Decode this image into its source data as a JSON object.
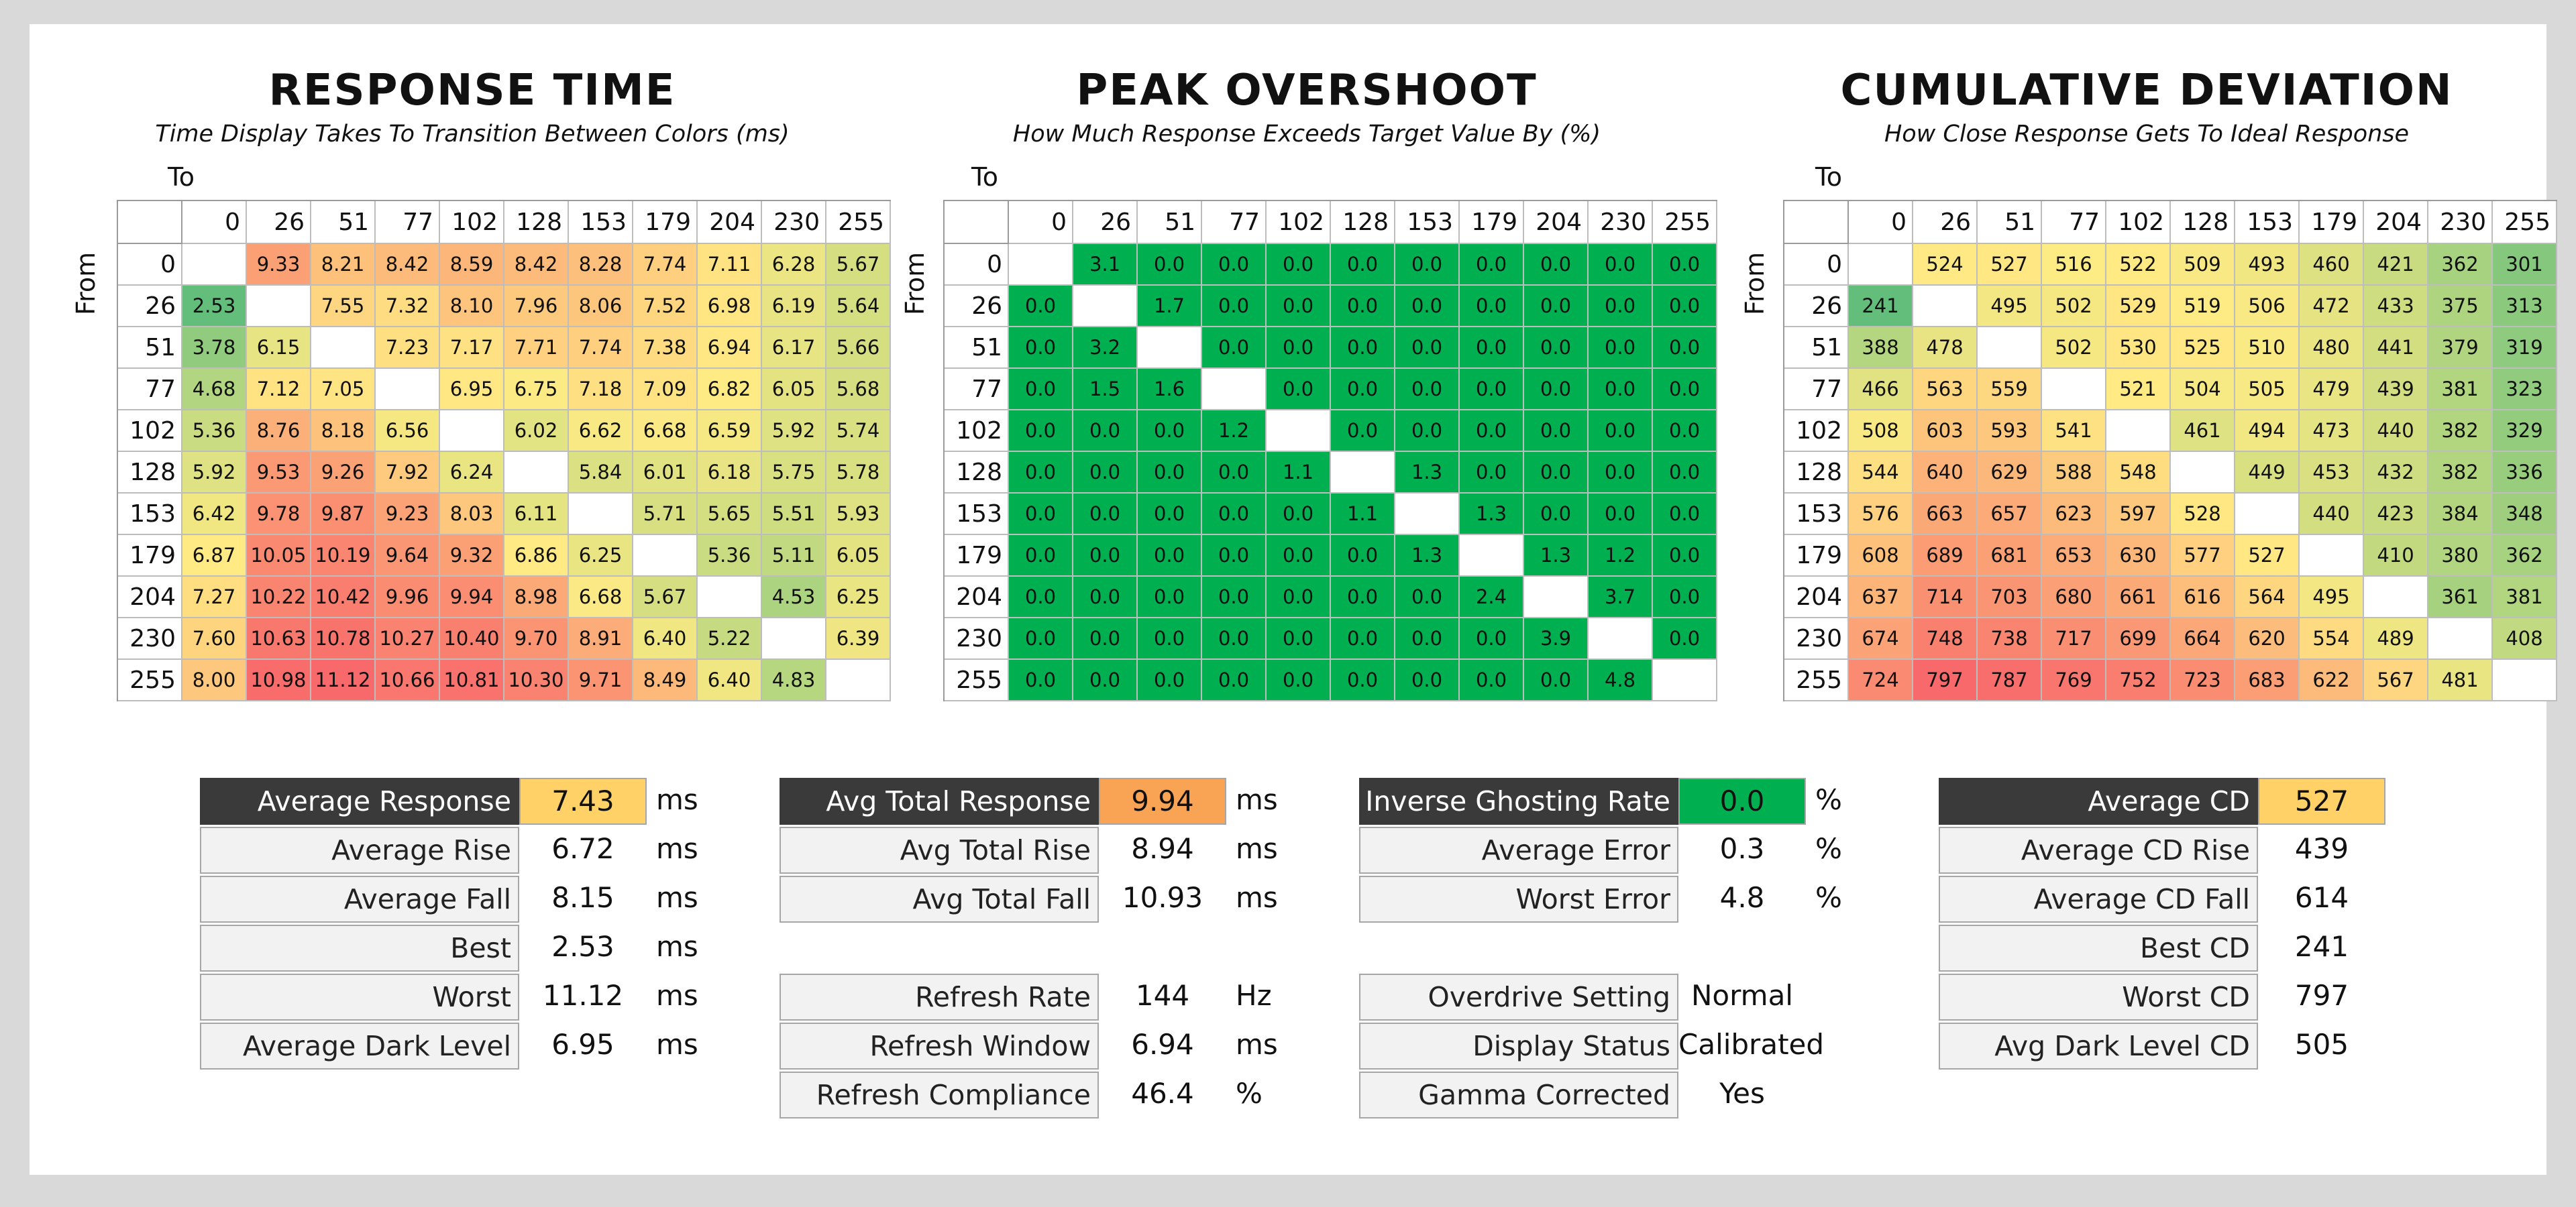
{
  "chart_data": [
    {
      "type": "heatmap",
      "title": "RESPONSE TIME",
      "subtitle": "Time Display Takes To Transition Between Colors (ms)",
      "xlabel": "To",
      "ylabel": "From",
      "columns": [
        "0",
        "26",
        "51",
        "77",
        "102",
        "128",
        "153",
        "179",
        "204",
        "230",
        "255"
      ],
      "rows": [
        "0",
        "26",
        "51",
        "77",
        "102",
        "128",
        "153",
        "179",
        "204",
        "230",
        "255"
      ],
      "values": [
        [
          null,
          9.33,
          8.21,
          8.42,
          8.59,
          8.42,
          8.28,
          7.74,
          7.11,
          6.28,
          5.67
        ],
        [
          2.53,
          null,
          7.55,
          7.32,
          8.1,
          7.96,
          8.06,
          7.52,
          6.98,
          6.19,
          5.64
        ],
        [
          3.78,
          6.15,
          null,
          7.23,
          7.17,
          7.71,
          7.74,
          7.38,
          6.94,
          6.17,
          5.66
        ],
        [
          4.68,
          7.12,
          7.05,
          null,
          6.95,
          6.75,
          7.18,
          7.09,
          6.82,
          6.05,
          5.68
        ],
        [
          5.36,
          8.76,
          8.18,
          6.56,
          null,
          6.02,
          6.62,
          6.68,
          6.59,
          5.92,
          5.74
        ],
        [
          5.92,
          9.53,
          9.26,
          7.92,
          6.24,
          null,
          5.84,
          6.01,
          6.18,
          5.75,
          5.78
        ],
        [
          6.42,
          9.78,
          9.87,
          9.23,
          8.03,
          6.11,
          null,
          5.71,
          5.65,
          5.51,
          5.93
        ],
        [
          6.87,
          10.05,
          10.19,
          9.64,
          9.32,
          6.86,
          6.25,
          null,
          5.36,
          5.11,
          6.05
        ],
        [
          7.27,
          10.22,
          10.42,
          9.96,
          9.94,
          8.98,
          6.68,
          5.67,
          null,
          4.53,
          6.25
        ],
        [
          7.6,
          10.63,
          10.78,
          10.27,
          10.4,
          9.7,
          8.91,
          6.4,
          5.22,
          null,
          6.39
        ],
        [
          8.0,
          10.98,
          11.12,
          10.66,
          10.81,
          10.3,
          9.71,
          8.49,
          6.4,
          4.83,
          null
        ]
      ],
      "decimals": 2,
      "color_scale": {
        "min": 2.53,
        "max": 11.12,
        "low": "#63be7b",
        "mid": "#ffeb84",
        "high": "#f8696b"
      }
    },
    {
      "type": "heatmap",
      "title": "PEAK OVERSHOOT",
      "subtitle": "How Much Response Exceeds Target Value By (%)",
      "xlabel": "To",
      "ylabel": "From",
      "columns": [
        "0",
        "26",
        "51",
        "77",
        "102",
        "128",
        "153",
        "179",
        "204",
        "230",
        "255"
      ],
      "rows": [
        "0",
        "26",
        "51",
        "77",
        "102",
        "128",
        "153",
        "179",
        "204",
        "230",
        "255"
      ],
      "values": [
        [
          null,
          3.1,
          0.0,
          0.0,
          0.0,
          0.0,
          0.0,
          0.0,
          0.0,
          0.0,
          0.0
        ],
        [
          0.0,
          null,
          1.7,
          0.0,
          0.0,
          0.0,
          0.0,
          0.0,
          0.0,
          0.0,
          0.0
        ],
        [
          0.0,
          3.2,
          null,
          0.0,
          0.0,
          0.0,
          0.0,
          0.0,
          0.0,
          0.0,
          0.0
        ],
        [
          0.0,
          1.5,
          1.6,
          null,
          0.0,
          0.0,
          0.0,
          0.0,
          0.0,
          0.0,
          0.0
        ],
        [
          0.0,
          0.0,
          0.0,
          1.2,
          null,
          0.0,
          0.0,
          0.0,
          0.0,
          0.0,
          0.0
        ],
        [
          0.0,
          0.0,
          0.0,
          0.0,
          1.1,
          null,
          1.3,
          0.0,
          0.0,
          0.0,
          0.0
        ],
        [
          0.0,
          0.0,
          0.0,
          0.0,
          0.0,
          1.1,
          null,
          1.3,
          0.0,
          0.0,
          0.0
        ],
        [
          0.0,
          0.0,
          0.0,
          0.0,
          0.0,
          0.0,
          1.3,
          null,
          1.3,
          1.2,
          0.0
        ],
        [
          0.0,
          0.0,
          0.0,
          0.0,
          0.0,
          0.0,
          0.0,
          2.4,
          null,
          3.7,
          0.0
        ],
        [
          0.0,
          0.0,
          0.0,
          0.0,
          0.0,
          0.0,
          0.0,
          0.0,
          3.9,
          null,
          0.0
        ],
        [
          0.0,
          0.0,
          0.0,
          0.0,
          0.0,
          0.0,
          0.0,
          0.0,
          0.0,
          4.8,
          null
        ]
      ],
      "decimals": 1,
      "uniform_color": "#00b050"
    },
    {
      "type": "heatmap",
      "title": "CUMULATIVE DEVIATION",
      "subtitle": "How Close Response Gets To Ideal Response",
      "xlabel": "To",
      "ylabel": "From",
      "columns": [
        "0",
        "26",
        "51",
        "77",
        "102",
        "128",
        "153",
        "179",
        "204",
        "230",
        "255"
      ],
      "rows": [
        "0",
        "26",
        "51",
        "77",
        "102",
        "128",
        "153",
        "179",
        "204",
        "230",
        "255"
      ],
      "values": [
        [
          null,
          524,
          527,
          516,
          522,
          509,
          493,
          460,
          421,
          362,
          301
        ],
        [
          241,
          null,
          495,
          502,
          529,
          519,
          506,
          472,
          433,
          375,
          313
        ],
        [
          388,
          478,
          null,
          502,
          530,
          525,
          510,
          480,
          441,
          379,
          319
        ],
        [
          466,
          563,
          559,
          null,
          521,
          504,
          505,
          479,
          439,
          381,
          323
        ],
        [
          508,
          603,
          593,
          541,
          null,
          461,
          494,
          473,
          440,
          382,
          329
        ],
        [
          544,
          640,
          629,
          588,
          548,
          null,
          449,
          453,
          432,
          382,
          336
        ],
        [
          576,
          663,
          657,
          623,
          597,
          528,
          null,
          440,
          423,
          384,
          348
        ],
        [
          608,
          689,
          681,
          653,
          630,
          577,
          527,
          null,
          410,
          380,
          362
        ],
        [
          637,
          714,
          703,
          680,
          661,
          616,
          564,
          495,
          null,
          361,
          381
        ],
        [
          674,
          748,
          738,
          717,
          699,
          664,
          620,
          554,
          489,
          null,
          408
        ],
        [
          724,
          797,
          787,
          769,
          752,
          723,
          683,
          622,
          567,
          481,
          null
        ]
      ],
      "decimals": 0,
      "color_scale": {
        "min": 241,
        "max": 797,
        "low": "#63be7b",
        "mid": "#ffeb84",
        "high": "#f8696b"
      }
    }
  ],
  "stats": [
    {
      "name": "response",
      "rows": [
        {
          "label": "Average Response",
          "value": "7.43",
          "unit": "ms",
          "header": true,
          "highlight": "#ffd166"
        },
        {
          "label": "Average Rise",
          "value": "6.72",
          "unit": "ms"
        },
        {
          "label": "Average Fall",
          "value": "8.15",
          "unit": "ms"
        },
        {
          "label": "Best",
          "value": "2.53",
          "unit": "ms"
        },
        {
          "label": "Worst",
          "value": "11.12",
          "unit": "ms"
        },
        {
          "label": "Average Dark Level",
          "value": "6.95",
          "unit": "ms"
        }
      ]
    },
    {
      "name": "total",
      "rows": [
        {
          "label": "Avg Total Response",
          "value": "9.94",
          "unit": "ms",
          "header": true,
          "highlight": "#f9a455"
        },
        {
          "label": "Avg Total Rise",
          "value": "8.94",
          "unit": "ms"
        },
        {
          "label": "Avg Total Fall",
          "value": "10.93",
          "unit": "ms"
        },
        {
          "gap": true
        },
        {
          "label": "Refresh Rate",
          "value": "144",
          "unit": "Hz"
        },
        {
          "label": "Refresh Window",
          "value": "6.94",
          "unit": "ms"
        },
        {
          "label": "Refresh Compliance",
          "value": "46.4",
          "unit": "%"
        }
      ]
    },
    {
      "name": "overshoot",
      "rows": [
        {
          "label": "Inverse Ghosting Rate",
          "value": "0.0",
          "unit": "%",
          "header": true,
          "highlight": "#00b050"
        },
        {
          "label": "Average Error",
          "value": "0.3",
          "unit": "%"
        },
        {
          "label": "Worst Error",
          "value": "4.8",
          "unit": "%"
        },
        {
          "gap": true
        },
        {
          "label": "Overdrive Setting",
          "value": "Normal",
          "unit": ""
        },
        {
          "label": "Display Status",
          "value": "Calibrated",
          "unit": ""
        },
        {
          "label": "Gamma Corrected",
          "value": "Yes",
          "unit": ""
        }
      ]
    },
    {
      "name": "cd",
      "rows": [
        {
          "label": "Average CD",
          "value": "527",
          "unit": "",
          "header": true,
          "highlight": "#ffd166"
        },
        {
          "label": "Average CD Rise",
          "value": "439",
          "unit": ""
        },
        {
          "label": "Average CD Fall",
          "value": "614",
          "unit": ""
        },
        {
          "label": "Best CD",
          "value": "241",
          "unit": ""
        },
        {
          "label": "Worst CD",
          "value": "797",
          "unit": ""
        },
        {
          "label": "Avg Dark Level CD",
          "value": "505",
          "unit": ""
        }
      ]
    }
  ]
}
